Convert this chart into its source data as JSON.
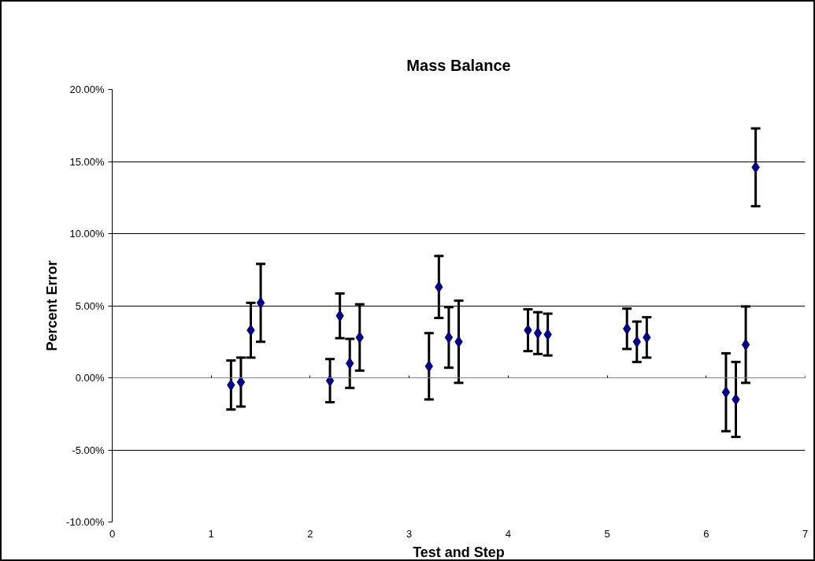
{
  "chart_data": {
    "type": "scatter",
    "title": "Mass Balance",
    "xlabel": "Test and Step",
    "ylabel": "Percent Error",
    "x": [
      1.2,
      1.3,
      1.4,
      1.5,
      2.2,
      2.3,
      2.4,
      2.5,
      3.2,
      3.3,
      3.4,
      3.5,
      4.2,
      4.3,
      4.4,
      5.2,
      5.3,
      5.4,
      6.2,
      6.3,
      6.4,
      6.5
    ],
    "series": [
      {
        "color": "#000080",
        "values": [
          -0.5,
          -0.3,
          3.3,
          5.2,
          -0.2,
          4.3,
          1.0,
          2.8,
          0.8,
          6.3,
          2.8,
          2.5,
          3.3,
          3.1,
          3.0,
          3.4,
          2.5,
          2.8,
          -1.0,
          -1.5,
          2.3,
          14.6
        ],
        "errors": [
          1.7,
          1.7,
          1.9,
          2.7,
          1.5,
          1.55,
          1.7,
          2.3,
          2.3,
          2.15,
          2.1,
          2.85,
          1.45,
          1.45,
          1.45,
          1.4,
          1.4,
          1.4,
          2.7,
          2.6,
          2.65,
          2.7
        ]
      }
    ],
    "xlim": [
      0,
      7
    ],
    "xticks": [
      0,
      1,
      2,
      3,
      4,
      5,
      6,
      7
    ],
    "ylim": [
      -10,
      20
    ],
    "yticks": [
      {
        "value": -10,
        "label": "-10.00%"
      },
      {
        "value": -5,
        "label": "-5.00%"
      },
      {
        "value": 0,
        "label": "0.00%"
      },
      {
        "value": 5,
        "label": "5.00%"
      },
      {
        "value": 10,
        "label": "10.00%"
      },
      {
        "value": 15,
        "label": "15.00%"
      },
      {
        "value": 20,
        "label": "20.00%"
      }
    ],
    "grid": "y",
    "marker": "diamond"
  }
}
